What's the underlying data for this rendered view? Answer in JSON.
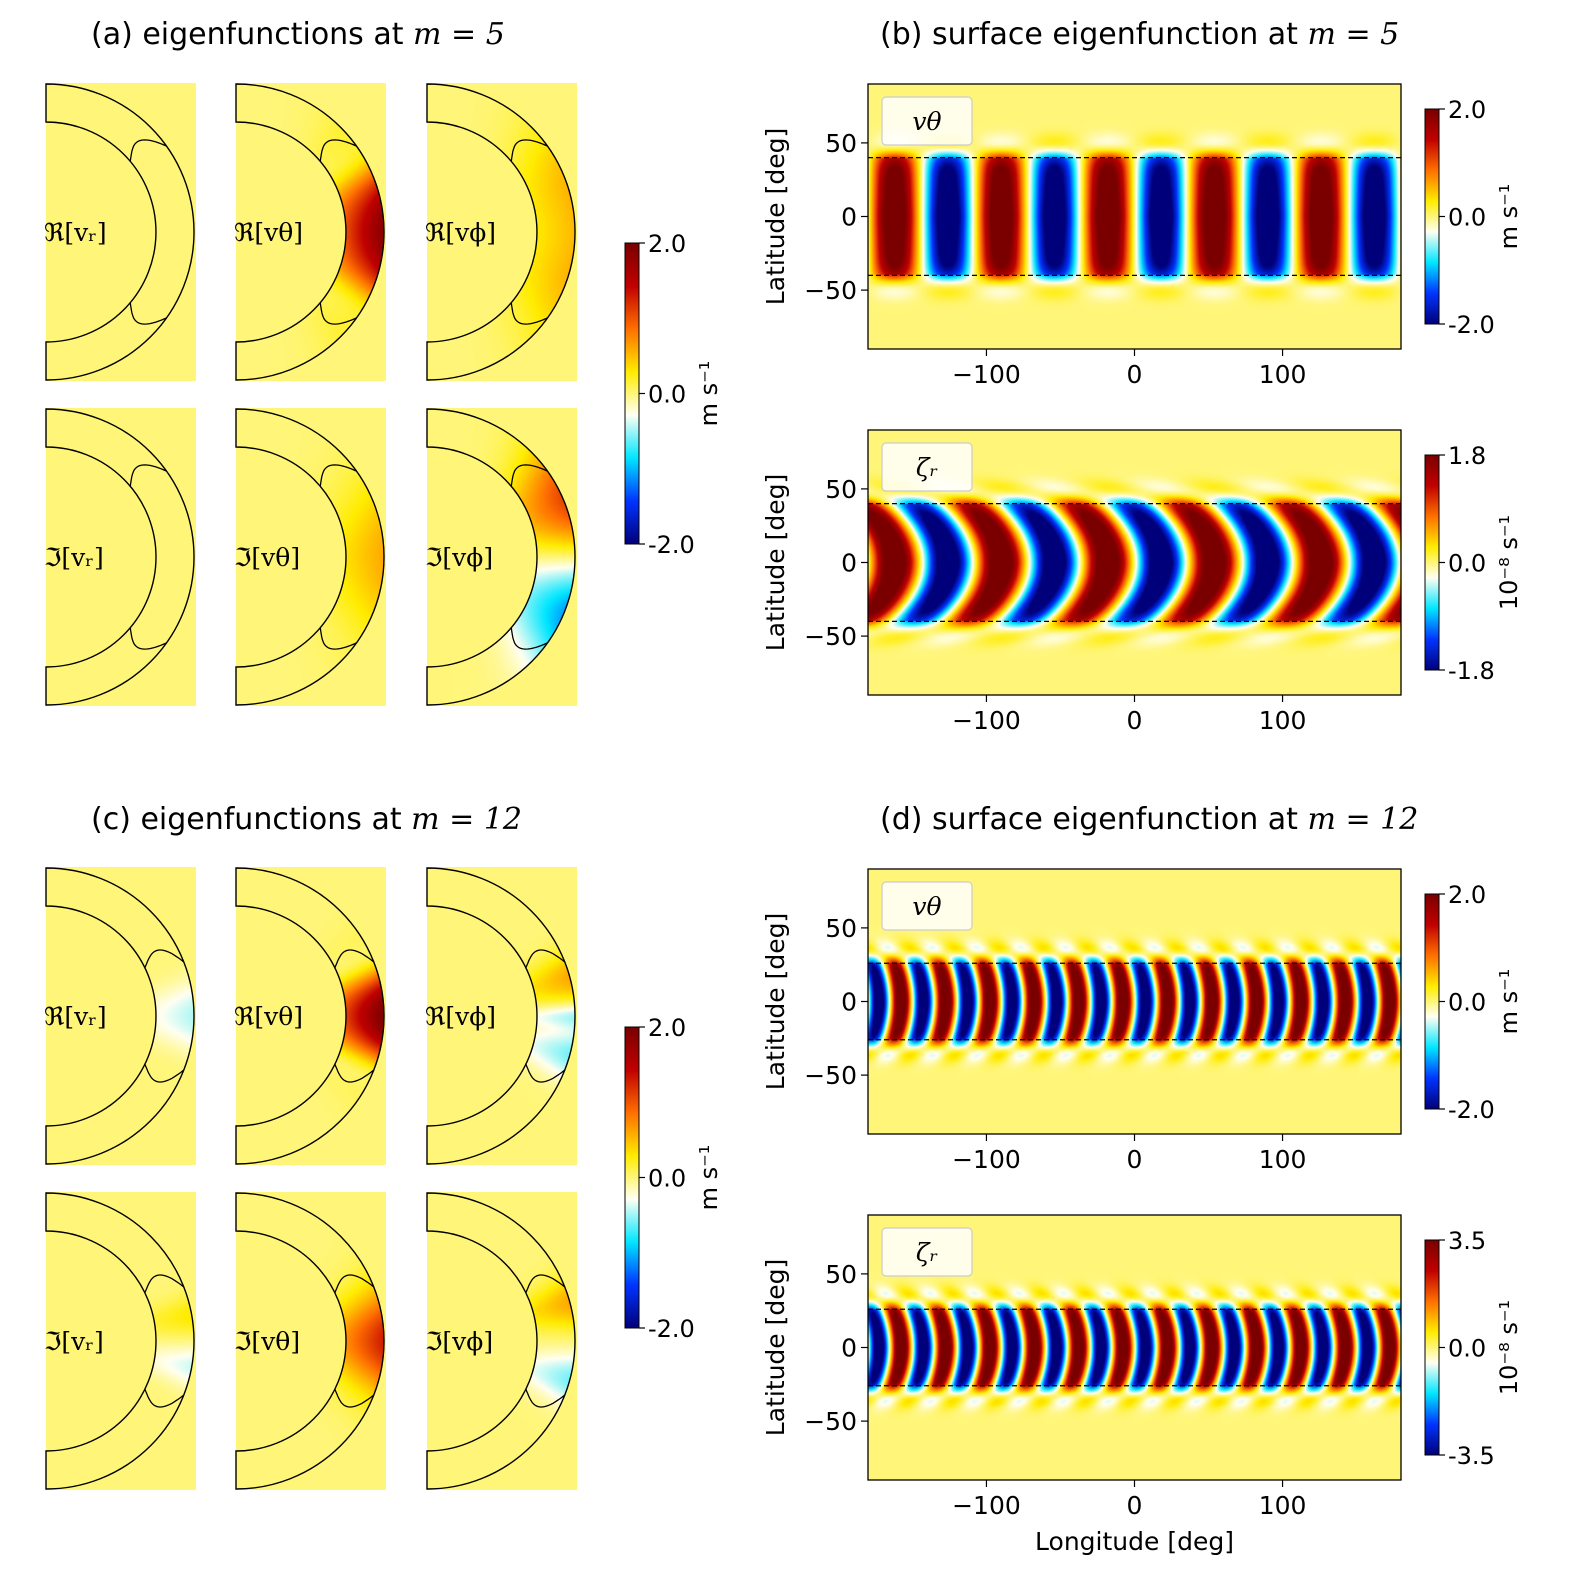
{
  "figure": {
    "panel_a_title": "(a) eigenfunctions at",
    "panel_b_title": "(b) surface eigenfunction at",
    "panel_c_title": "(c) eigenfunctions at",
    "panel_d_title": "(d) surface eigenfunction at",
    "m_label_5": "m = 5",
    "m_label_12": "m = 12",
    "components": [
      "ℜ[vᵣ]",
      "ℜ[vθ]",
      "ℜ[vϕ]",
      "ℑ[vᵣ]",
      "ℑ[vθ]",
      "ℑ[vϕ]"
    ],
    "colormap": [
      "#00007a",
      "#0034ff",
      "#00e6ff",
      "#fffff2",
      "#ffec00",
      "#ff7000",
      "#c00000",
      "#7a0000"
    ],
    "axis_color": "#000000"
  },
  "chart_data": [
    {
      "id": "a",
      "type": "heatmap",
      "subtype": "meridional-slices",
      "title": "(a) eigenfunctions at m = 5",
      "colorbar": {
        "min": -2.0,
        "max": 2.0,
        "ticks": [
          "2.0",
          "0.0",
          "-2.0"
        ],
        "unit": "m s⁻¹"
      },
      "slices": [
        {
          "label": "ℜ[vᵣ]",
          "lobes": []
        },
        {
          "label": "ℜ[vθ]",
          "lobes": [
            {
              "lat_deg": 0,
              "lat_width_deg": 30,
              "peak": 1.9
            },
            {
              "lat_deg": 30,
              "lat_width_deg": 10,
              "peak": -0.4
            },
            {
              "lat_deg": -30,
              "lat_width_deg": 10,
              "peak": -0.4
            }
          ]
        },
        {
          "label": "ℜ[vϕ]",
          "lobes": [
            {
              "lat_deg": 20,
              "lat_width_deg": 25,
              "peak": 0.5
            },
            {
              "lat_deg": -20,
              "lat_width_deg": 25,
              "peak": 0.5
            }
          ]
        },
        {
          "label": "ℑ[vᵣ]",
          "lobes": []
        },
        {
          "label": "ℑ[vθ]",
          "lobes": [
            {
              "lat_deg": 0,
              "lat_width_deg": 30,
              "peak": 0.6
            }
          ]
        },
        {
          "label": "ℑ[vϕ]",
          "lobes": [
            {
              "lat_deg": 22,
              "lat_width_deg": 22,
              "peak": 1.1
            },
            {
              "lat_deg": -22,
              "lat_width_deg": 22,
              "peak": -1.1
            }
          ]
        }
      ]
    },
    {
      "id": "b",
      "type": "heatmap",
      "title": "(b) surface eigenfunction at m = 5",
      "subplots": [
        {
          "legend": "vθ",
          "xlabel": "",
          "ylabel": "Latitude [deg]",
          "xlim": [
            -180,
            180
          ],
          "ylim": [
            -90,
            90
          ],
          "xticks": [
            -100,
            0,
            100
          ],
          "yticks": [
            50,
            0,
            -50
          ],
          "m": 5,
          "critical_latitude_deg": 40,
          "amplitude": 2.0,
          "eq_width_deg": 25,
          "tilt": 0,
          "colorbar": {
            "min": -2.0,
            "max": 2.0,
            "ticks": [
              "2.0",
              "0.0",
              "-2.0"
            ],
            "unit": "m s⁻¹"
          }
        },
        {
          "legend": "ζᵣ",
          "xlabel": "",
          "ylabel": "Latitude [deg]",
          "xlim": [
            -180,
            180
          ],
          "ylim": [
            -90,
            90
          ],
          "xticks": [
            -100,
            0,
            100
          ],
          "yticks": [
            50,
            0,
            -50
          ],
          "m": 5,
          "critical_latitude_deg": 40,
          "amplitude": 1.8,
          "eq_width_deg": 28,
          "tilt": 0.9,
          "colorbar": {
            "min": -1.8,
            "max": 1.8,
            "ticks": [
              "1.8",
              "0.0",
              "-1.8"
            ],
            "unit": "10⁻⁸ s⁻¹"
          }
        }
      ]
    },
    {
      "id": "c",
      "type": "heatmap",
      "subtype": "meridional-slices",
      "title": "(c) eigenfunctions at m = 12",
      "colorbar": {
        "min": -2.0,
        "max": 2.0,
        "ticks": [
          "2.0",
          "0.0",
          "-2.0"
        ],
        "unit": "m s⁻¹"
      },
      "slices": [
        {
          "label": "ℜ[vᵣ]",
          "lobes": [
            {
              "lat_deg": 5,
              "lat_width_deg": 10,
              "peak": -0.3
            },
            {
              "lat_deg": -5,
              "lat_width_deg": 10,
              "peak": -0.3
            }
          ]
        },
        {
          "label": "ℜ[vθ]",
          "lobes": [
            {
              "lat_deg": 0,
              "lat_width_deg": 20,
              "peak": 2.0
            },
            {
              "lat_deg": 22,
              "lat_width_deg": 8,
              "peak": -0.4
            },
            {
              "lat_deg": -22,
              "lat_width_deg": 8,
              "peak": -0.4
            }
          ]
        },
        {
          "label": "ℜ[vϕ]",
          "lobes": [
            {
              "lat_deg": 15,
              "lat_width_deg": 10,
              "peak": 0.6
            },
            {
              "lat_deg": 0,
              "lat_width_deg": 5,
              "peak": -0.5
            },
            {
              "lat_deg": -15,
              "lat_width_deg": 10,
              "peak": -0.6
            }
          ]
        },
        {
          "label": "ℑ[vᵣ]",
          "lobes": [
            {
              "lat_deg": 10,
              "lat_width_deg": 8,
              "peak": 0.3
            },
            {
              "lat_deg": -10,
              "lat_width_deg": 8,
              "peak": -0.4
            }
          ]
        },
        {
          "label": "ℑ[vθ]",
          "lobes": [
            {
              "lat_deg": 0,
              "lat_width_deg": 20,
              "peak": 1.3
            }
          ]
        },
        {
          "label": "ℑ[vϕ]",
          "lobes": [
            {
              "lat_deg": 15,
              "lat_width_deg": 10,
              "peak": 0.6
            },
            {
              "lat_deg": -15,
              "lat_width_deg": 10,
              "peak": -0.6
            }
          ]
        }
      ]
    },
    {
      "id": "d",
      "type": "heatmap",
      "title": "(d) surface eigenfunction at m = 12",
      "subplots": [
        {
          "legend": "vθ",
          "xlabel": "",
          "ylabel": "Latitude [deg]",
          "xlim": [
            -180,
            180
          ],
          "ylim": [
            -90,
            90
          ],
          "xticks": [
            -100,
            0,
            100
          ],
          "yticks": [
            50,
            0,
            -50
          ],
          "m": 12,
          "critical_latitude_deg": 26,
          "amplitude": 2.0,
          "eq_width_deg": 20,
          "tilt": 0.7,
          "colorbar": {
            "min": -2.0,
            "max": 2.0,
            "ticks": [
              "2.0",
              "0.0",
              "-2.0"
            ],
            "unit": "m s⁻¹"
          }
        },
        {
          "legend": "ζᵣ",
          "xlabel": "Longitude [deg]",
          "ylabel": "Latitude [deg]",
          "xlim": [
            -180,
            180
          ],
          "ylim": [
            -90,
            90
          ],
          "xticks": [
            -100,
            0,
            100
          ],
          "yticks": [
            50,
            0,
            -50
          ],
          "m": 12,
          "critical_latitude_deg": 26,
          "amplitude": 3.5,
          "eq_width_deg": 22,
          "tilt": 0.8,
          "colorbar": {
            "min": -3.5,
            "max": 3.5,
            "ticks": [
              "3.5",
              "0.0",
              "-3.5"
            ],
            "unit": "10⁻⁸ s⁻¹"
          }
        }
      ]
    }
  ]
}
